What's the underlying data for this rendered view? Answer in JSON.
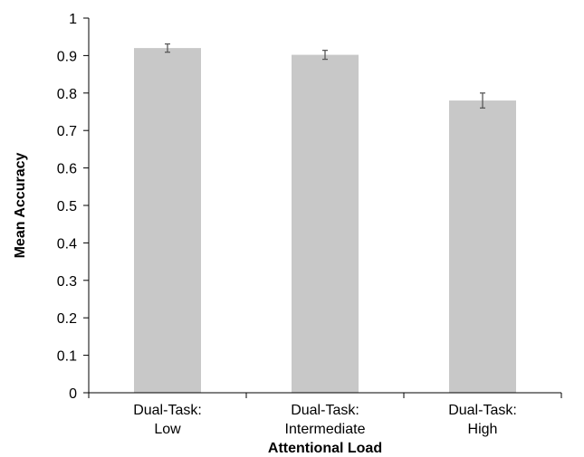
{
  "chart_data": {
    "type": "bar",
    "categories": [
      [
        "Dual-Task:",
        "Low"
      ],
      [
        "Dual-Task:",
        "Intermediate"
      ],
      [
        "Dual-Task:",
        "High"
      ]
    ],
    "values": [
      0.92,
      0.902,
      0.78
    ],
    "errors": [
      0.011,
      0.012,
      0.02
    ],
    "xlabel": "Attentional Load",
    "ylabel": "Mean Accuracy",
    "ylim": [
      0,
      1
    ],
    "yticks": [
      "0",
      "0.1",
      "0.2",
      "0.3",
      "0.4",
      "0.5",
      "0.6",
      "0.7",
      "0.8",
      "0.9",
      "1"
    ],
    "grid": false,
    "bar_color": "#c8c8c8",
    "error_bar_color": "#595959",
    "axis_color": "#000000"
  }
}
